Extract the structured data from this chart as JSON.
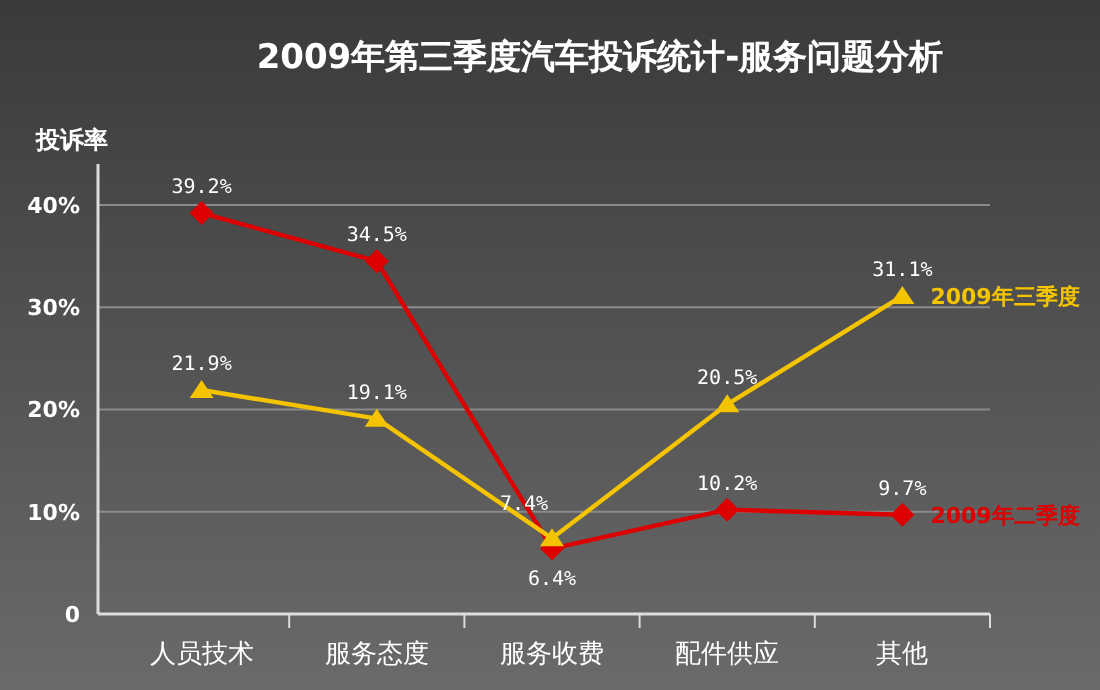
{
  "chart_data": {
    "type": "line",
    "title": "2009年第三季度汽车投诉统计-服务问题分析",
    "ylabel": "投诉率",
    "categories": [
      "人员技术",
      "服务态度",
      "服务收费",
      "配件供应",
      "其他"
    ],
    "series": [
      {
        "name": "2009年二季度",
        "color": "#dd0000",
        "marker": "diamond",
        "values": [
          39.2,
          34.5,
          6.4,
          10.2,
          9.7
        ],
        "value_labels": [
          "39.2%",
          "34.5%",
          "6.4%",
          "10.2%",
          "9.7%"
        ]
      },
      {
        "name": "2009年三季度",
        "color": "#f5c400",
        "marker": "triangle",
        "values": [
          21.9,
          19.1,
          7.4,
          20.5,
          31.1
        ],
        "value_labels": [
          "21.9%",
          "19.1%",
          "7.4%",
          "20.5%",
          "31.1%"
        ]
      }
    ],
    "ylim": [
      0,
      44
    ],
    "yticks": [
      0,
      {
        "value": 10,
        "label": "10%"
      },
      {
        "value": 20,
        "label": "20%"
      },
      {
        "value": 30,
        "label": "30%"
      },
      {
        "value": 40,
        "label": "40%"
      }
    ],
    "grid": "y"
  }
}
